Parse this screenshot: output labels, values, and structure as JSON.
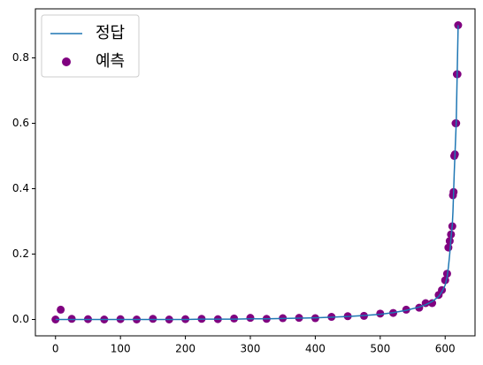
{
  "chart_data": {
    "type": "line_scatter",
    "x": [
      0,
      8,
      25,
      50,
      75,
      100,
      125,
      150,
      175,
      200,
      225,
      250,
      275,
      300,
      325,
      350,
      375,
      400,
      425,
      450,
      475,
      500,
      520,
      540,
      560,
      570,
      580,
      590,
      595,
      600,
      603,
      605,
      607,
      609,
      611,
      612,
      613,
      614,
      615,
      616,
      617,
      618,
      619,
      620
    ],
    "series": [
      {
        "name": "정답",
        "type": "line",
        "color": "#1f77b4",
        "values": [
          0,
          0,
          0,
          0,
          0,
          0,
          0,
          0,
          0,
          0,
          0.001,
          0.001,
          0.001,
          0.002,
          0.002,
          0.003,
          0.004,
          0.005,
          0.007,
          0.009,
          0.012,
          0.016,
          0.021,
          0.028,
          0.038,
          0.045,
          0.055,
          0.07,
          0.085,
          0.105,
          0.13,
          0.16,
          0.2,
          0.25,
          0.29,
          0.33,
          0.39,
          0.45,
          0.5,
          0.55,
          0.6,
          0.7,
          0.8,
          0.9
        ]
      },
      {
        "name": "예측",
        "type": "scatter",
        "color": "#800080",
        "values": [
          0,
          0.03,
          0.002,
          0.001,
          0,
          0.001,
          0,
          0.002,
          0,
          0.001,
          0.002,
          0.001,
          0.003,
          0.005,
          0.002,
          0.004,
          0.005,
          0.004,
          0.008,
          0.01,
          0.011,
          0.018,
          0.02,
          0.03,
          0.036,
          0.05,
          0.05,
          0.075,
          0.09,
          0.12,
          0.14,
          0.22,
          0.24,
          0.26,
          0.285,
          0.38,
          0.39,
          0.5,
          0.505,
          0.6,
          0.6,
          0.75,
          0.75,
          0.9
        ]
      }
    ],
    "xlim": [
      -31,
      646
    ],
    "xticks": [
      0,
      100,
      200,
      300,
      400,
      500,
      600
    ],
    "ylim": [
      -0.05,
      0.95
    ],
    "yticks": [
      {
        "value": 0,
        "label": "0.0"
      },
      0.2,
      0.4,
      0.6,
      0.8
    ],
    "legend": "upper left"
  }
}
